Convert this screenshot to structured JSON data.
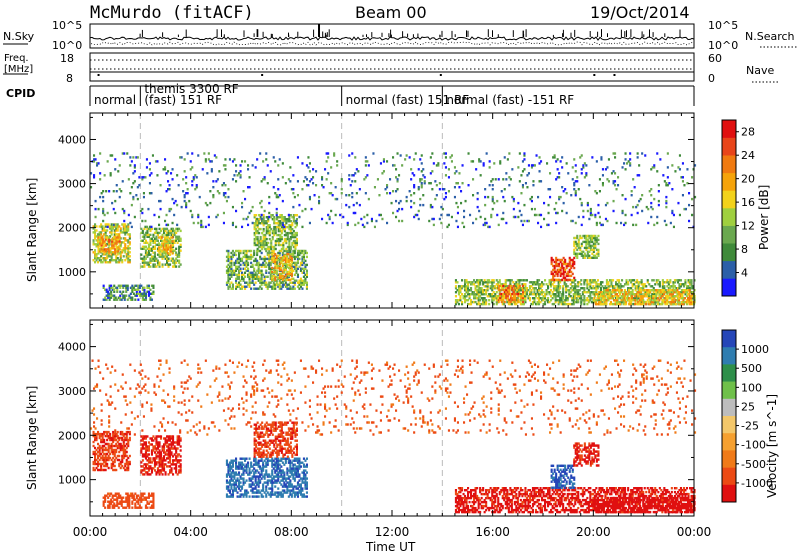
{
  "header": {
    "station": "McMurdo (fitACF)",
    "beam": "Beam 00",
    "date": "19/Oct/2014"
  },
  "top_panel": {
    "nsky_label": "N.Sky",
    "nsearch_label": "N.Search",
    "left_ticks": [
      "10^5",
      "10^0"
    ],
    "right_ticks": [
      "10^5",
      "10^0"
    ],
    "freq_label_line1": "Freq.",
    "freq_label_line2": "[MHz]",
    "freq_ticks": [
      "18",
      "8"
    ],
    "nave_label": "Nave",
    "nave_ticks": [
      "60",
      "0"
    ],
    "cpid_label": "CPID",
    "cpid_segments": [
      {
        "label": "normal",
        "start_h": 0.0,
        "end_h": 2.0
      },
      {
        "label": "themis 3300 RF",
        "start_h": 2.0,
        "end_h": 10.0,
        "sub": "(fast) 151 RF"
      },
      {
        "label": "normal (fast) 151 RF",
        "start_h": 10.0,
        "end_h": 14.0
      },
      {
        "label": "normal (fast) -151 RF",
        "start_h": 14.0,
        "end_h": 24.0
      }
    ]
  },
  "x_axis": {
    "ticks": [
      "00:00",
      "04:00",
      "08:00",
      "12:00",
      "16:00",
      "20:00",
      "00:00"
    ],
    "label": "Time UT",
    "range_hours": [
      0,
      24
    ]
  },
  "colors": {
    "power": [
      "#1a1aff",
      "#2b5fa8",
      "#3f8a3a",
      "#6aa84f",
      "#9fcf3f",
      "#f2d21b",
      "#f5a30a",
      "#f07a10",
      "#e8451a",
      "#e01010"
    ],
    "velocity": [
      "#2546b8",
      "#2f7db0",
      "#2e8f4a",
      "#6fc04a",
      "#bdbdbd",
      "#f3c76a",
      "#f5a030",
      "#f07a18",
      "#ec4a14",
      "#e01010"
    ]
  },
  "chart_data": [
    {
      "type": "heatmap",
      "title": "",
      "xlabel": "Time UT",
      "ylabel": "Slant Range [km]",
      "y_ticks": [
        "1000",
        "2000",
        "3000",
        "4000"
      ],
      "ylim": [
        180,
        4600
      ],
      "colorbar_label": "Power [dB]",
      "colorbar_ticks": [
        "4",
        "8",
        "12",
        "16",
        "20",
        "24",
        "28"
      ],
      "colorbar_range": [
        0,
        30
      ],
      "regions": [
        {
          "t0": 0.1,
          "t1": 1.6,
          "r0": 1200,
          "r1": 2100,
          "level": 14
        },
        {
          "t0": 0.3,
          "t1": 1.2,
          "r0": 1400,
          "r1": 1800,
          "level": 20
        },
        {
          "t0": 2.0,
          "t1": 3.6,
          "r0": 1100,
          "r1": 2000,
          "level": 12
        },
        {
          "t0": 2.7,
          "t1": 3.3,
          "r0": 1400,
          "r1": 1800,
          "level": 18
        },
        {
          "t0": 5.4,
          "t1": 8.6,
          "r0": 600,
          "r1": 1500,
          "level": 10
        },
        {
          "t0": 6.5,
          "t1": 8.2,
          "r0": 1500,
          "r1": 2300,
          "level": 12
        },
        {
          "t0": 7.2,
          "t1": 8.0,
          "r0": 800,
          "r1": 1400,
          "level": 18
        },
        {
          "t0": 0.5,
          "t1": 2.5,
          "r0": 350,
          "r1": 700,
          "level": 8
        },
        {
          "t0": 14.5,
          "t1": 24.0,
          "r0": 250,
          "r1": 800,
          "level": 12
        },
        {
          "t0": 16.2,
          "t1": 17.2,
          "r0": 300,
          "r1": 700,
          "level": 22
        },
        {
          "t0": 18.3,
          "t1": 19.2,
          "r0": 800,
          "r1": 1300,
          "level": 26
        },
        {
          "t0": 20.0,
          "t1": 24.0,
          "r0": 250,
          "r1": 600,
          "level": 18
        },
        {
          "t0": 19.2,
          "t1": 20.2,
          "r0": 1300,
          "r1": 1800,
          "level": 12
        },
        {
          "t0": 0.0,
          "t1": 24.0,
          "r0": 2000,
          "r1": 3700,
          "level": 6
        }
      ]
    },
    {
      "type": "heatmap",
      "title": "",
      "xlabel": "Time UT",
      "ylabel": "Slant Range [km]",
      "y_ticks": [
        "1000",
        "2000",
        "3000",
        "4000"
      ],
      "ylim": [
        180,
        4600
      ],
      "colorbar_label": "Velocity [m s^-1]",
      "colorbar_ticks": [
        "1000",
        "500",
        "100",
        "25",
        "-25",
        "-100",
        "-500",
        "-1000"
      ],
      "colorbar_range": [
        -1000,
        1000
      ],
      "regions": [
        {
          "t0": 0.1,
          "t1": 1.6,
          "r0": 1200,
          "r1": 2100,
          "level": -200
        },
        {
          "t0": 2.0,
          "t1": 3.6,
          "r0": 1100,
          "r1": 2000,
          "level": -300
        },
        {
          "t0": 5.4,
          "t1": 8.6,
          "r0": 600,
          "r1": 1500,
          "level": 200
        },
        {
          "t0": 6.5,
          "t1": 8.2,
          "r0": 1500,
          "r1": 2300,
          "level": -200
        },
        {
          "t0": 0.5,
          "t1": 2.5,
          "r0": 350,
          "r1": 700,
          "level": -150
        },
        {
          "t0": 14.5,
          "t1": 24.0,
          "r0": 250,
          "r1": 800,
          "level": -400
        },
        {
          "t0": 18.3,
          "t1": 19.2,
          "r0": 800,
          "r1": 1300,
          "level": 300
        },
        {
          "t0": 20.0,
          "t1": 24.0,
          "r0": 250,
          "r1": 600,
          "level": -600
        },
        {
          "t0": 19.2,
          "t1": 20.2,
          "r0": 1300,
          "r1": 1800,
          "level": -300
        },
        {
          "t0": 0.0,
          "t1": 24.0,
          "r0": 2000,
          "r1": 3700,
          "level": -100
        }
      ]
    }
  ]
}
